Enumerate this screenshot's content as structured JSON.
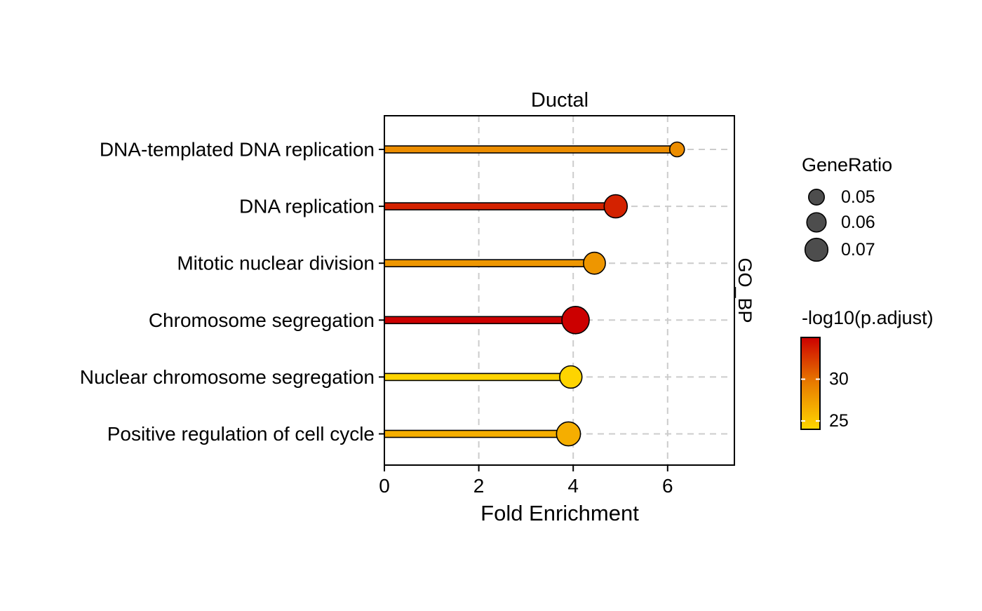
{
  "chart_data": {
    "type": "lollipop",
    "facet_title": "Ductal",
    "strip_label": "GO_BP",
    "xlabel": "Fold Enrichment",
    "ylabel": "",
    "xlim": [
      0,
      7.4
    ],
    "x_ticks": [
      0,
      2,
      4,
      6
    ],
    "grid": "vertical dashed at major ticks, horizontal dashed behind rows",
    "categories": [
      "DNA-templated DNA replication",
      "DNA replication",
      "Mitotic nuclear division",
      "Chromosome segregation",
      "Nuclear chromosome segregation",
      "Positive regulation of cell cycle"
    ],
    "fold_enrichment": [
      6.2,
      4.9,
      4.45,
      4.05,
      3.95,
      3.9
    ],
    "gene_ratio": [
      0.045,
      0.065,
      0.062,
      0.075,
      0.063,
      0.067
    ],
    "neg_log10_padj": [
      28.5,
      33.5,
      28.0,
      35.0,
      24.2,
      26.5
    ],
    "legend_size": {
      "title": "GeneRatio",
      "breaks": [
        0.05,
        0.06,
        0.07
      ],
      "break_labels": [
        "0.05",
        "0.06",
        "0.07"
      ],
      "key_color": "#4d4d4d"
    },
    "legend_color": {
      "title": "-log10(p.adjust)",
      "range": [
        24,
        35
      ],
      "breaks": [
        30,
        25
      ],
      "break_labels": [
        "30",
        "25"
      ],
      "gradient": [
        "#FFD700",
        "#E87D00",
        "#CC0000"
      ]
    },
    "legend_placement": "right"
  }
}
